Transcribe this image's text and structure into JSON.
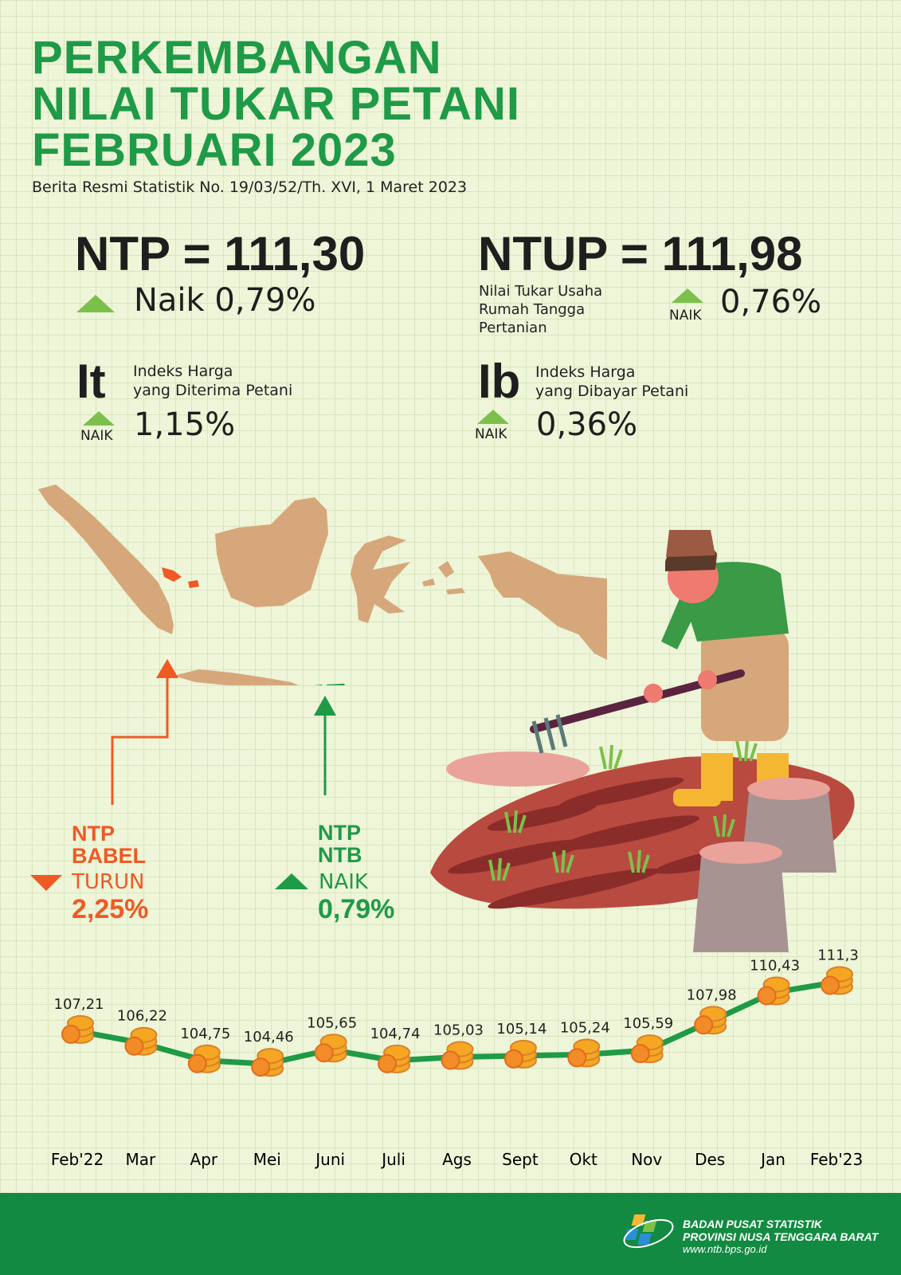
{
  "title_lines": [
    "PERKEMBANGAN",
    "NILAI TUKAR PETANI",
    "FEBRUARI 2023"
  ],
  "subtitle": "Berita Resmi Statistik No. 19/03/52/Th. XVI, 1 Maret 2023",
  "ntp": {
    "headline": "NTP = 111,30",
    "change": "Naik 0,79%"
  },
  "ntup": {
    "headline": "NTUP = 111,98",
    "desc_lines": [
      "Nilai Tukar Usaha",
      "Rumah Tangga",
      "Pertanian"
    ],
    "status": "NAIK",
    "change": "0,76%"
  },
  "it": {
    "letter": "It",
    "desc_lines": [
      "Indeks Harga",
      "yang Diterima Petani"
    ],
    "status": "NAIK",
    "change": "1,15%"
  },
  "ib": {
    "letter": "Ib",
    "desc_lines": [
      "Indeks Harga",
      "yang Dibayar Petani"
    ],
    "status": "NAIK",
    "change": "0,36%"
  },
  "babel": {
    "label_lines": [
      "NTP",
      "BABEL"
    ],
    "status": "TURUN",
    "change": "2,25%",
    "color": "#ef5a24"
  },
  "ntb": {
    "label_lines": [
      "NTP",
      "NTB"
    ],
    "status": "NAIK",
    "change": "0,79%",
    "color": "#1f9a47"
  },
  "colors": {
    "green": "#1f9a47",
    "light_green": "#7cc04b",
    "orange": "#ef5a24",
    "map": "#d6a77a",
    "footer": "#138a41"
  },
  "chart_data": {
    "type": "line",
    "categories": [
      "Feb'22",
      "Mar",
      "Apr",
      "Mei",
      "Juni",
      "Juli",
      "Ags",
      "Sept",
      "Okt",
      "Nov",
      "Des",
      "Jan",
      "Feb'23"
    ],
    "values": [
      107.21,
      106.22,
      104.75,
      104.46,
      105.65,
      104.74,
      105.03,
      105.14,
      105.24,
      105.59,
      107.98,
      110.43,
      111.3
    ],
    "value_labels": [
      "107,21",
      "106,22",
      "104,75",
      "104,46",
      "105,65",
      "104,74",
      "105,03",
      "105,14",
      "105,24",
      "105,59",
      "107,98",
      "110,43",
      "111,3"
    ],
    "title": "",
    "xlabel": "",
    "ylabel": "",
    "grid": false,
    "legend": "none"
  },
  "footer": {
    "org_lines": [
      "BADAN PUSAT STATISTIK",
      "PROVINSI NUSA TENGGARA BARAT"
    ],
    "url": "www.ntb.bps.go.id"
  }
}
